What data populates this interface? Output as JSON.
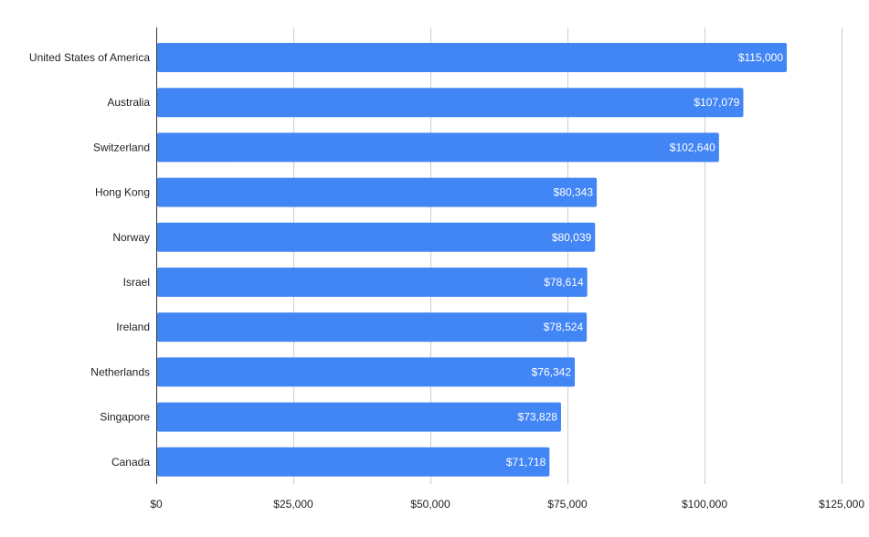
{
  "chart_data": {
    "type": "bar",
    "orientation": "horizontal",
    "categories": [
      "United States of America",
      "Australia",
      "Switzerland",
      "Hong Kong",
      "Norway",
      "Israel",
      "Ireland",
      "Netherlands",
      "Singapore",
      "Canada"
    ],
    "values": [
      115000,
      107079,
      102640,
      80343,
      80039,
      78614,
      78524,
      76342,
      73828,
      71718
    ],
    "data_labels": [
      "$115,000",
      "$107,079",
      "$102,640",
      "$80,343",
      "$80,039",
      "$78,614",
      "$78,524",
      "$76,342",
      "$73,828",
      "$71,718"
    ],
    "x_ticks": [
      0,
      25000,
      50000,
      75000,
      100000,
      125000
    ],
    "x_tick_labels": [
      "$0",
      "$25,000",
      "$50,000",
      "$75,000",
      "$100,000",
      "$125,000"
    ],
    "xlim": [
      0,
      125000
    ],
    "title": "",
    "xlabel": "",
    "ylabel": "",
    "grid": "vertical",
    "legend": "none",
    "bar_color": "#4285f4"
  }
}
